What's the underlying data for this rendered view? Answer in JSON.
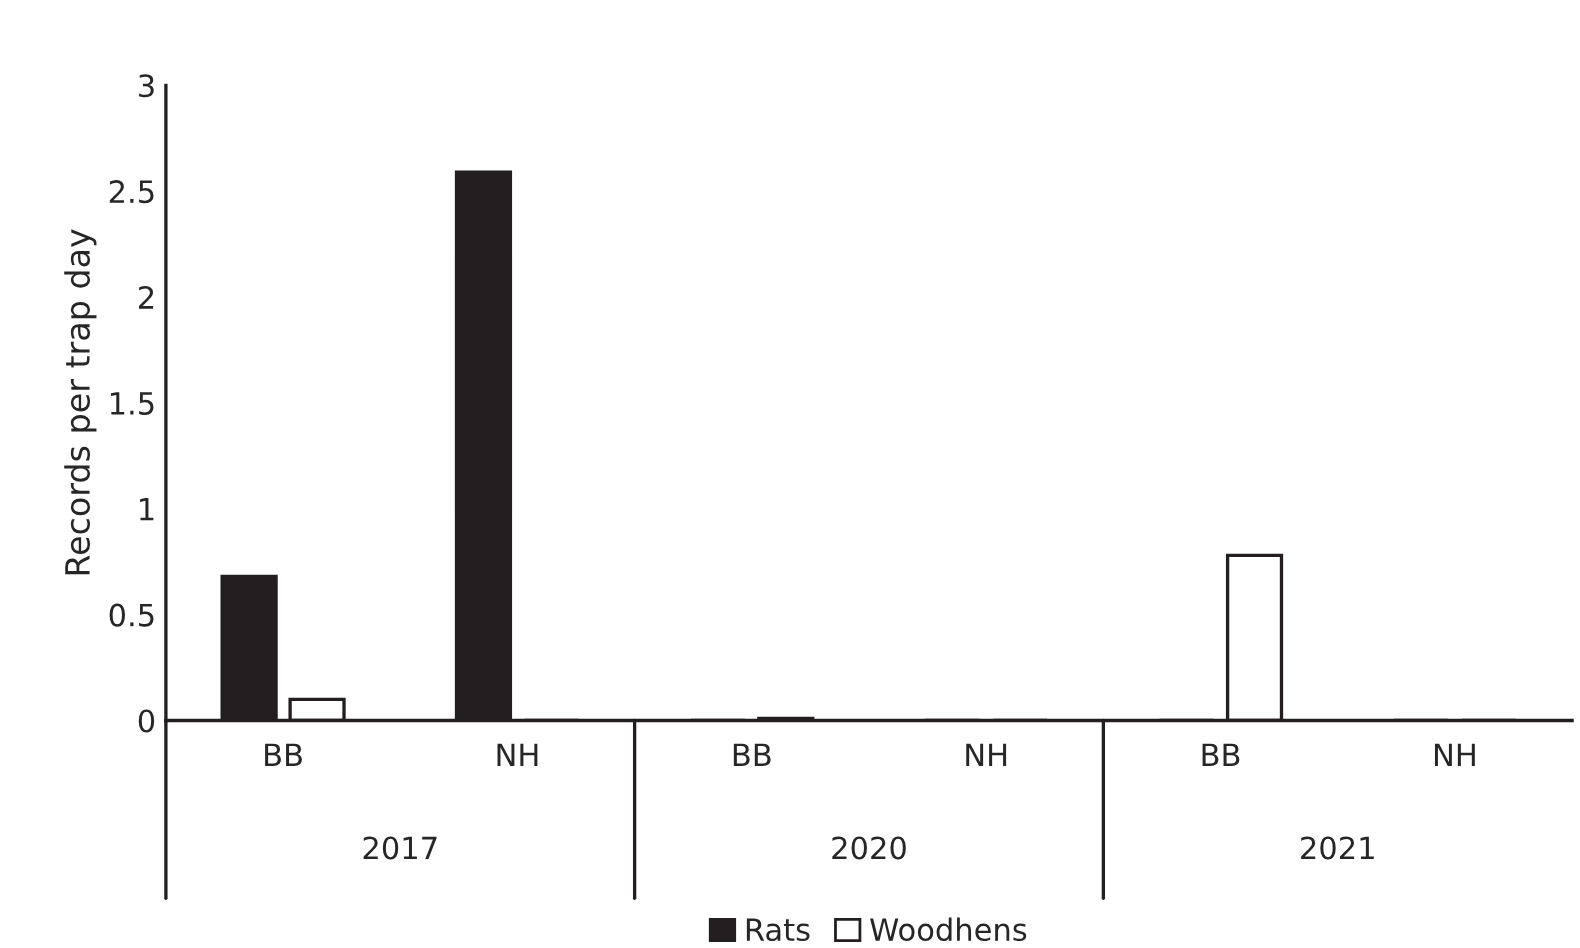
{
  "chart_data": {
    "type": "bar",
    "ylabel": "Records per trap day",
    "categories": [
      "BB",
      "NH",
      "BB",
      "NH",
      "BB",
      "NH"
    ],
    "series": [
      {
        "name": "Rats",
        "color": "#231f20",
        "values": [
          0.68,
          2.59,
          0,
          0,
          0,
          0
        ]
      },
      {
        "name": "Woodhens",
        "color": "#ffffff",
        "values": [
          0.1,
          0,
          0.01,
          0,
          0.78,
          0
        ]
      }
    ],
    "annotations": [
      "2017",
      "2020",
      "2021"
    ],
    "ylim": [
      0,
      3
    ],
    "yticks": [
      0,
      0.5,
      1,
      1.5,
      2,
      2.5,
      3
    ],
    "grid": false,
    "legend": "bottom"
  }
}
